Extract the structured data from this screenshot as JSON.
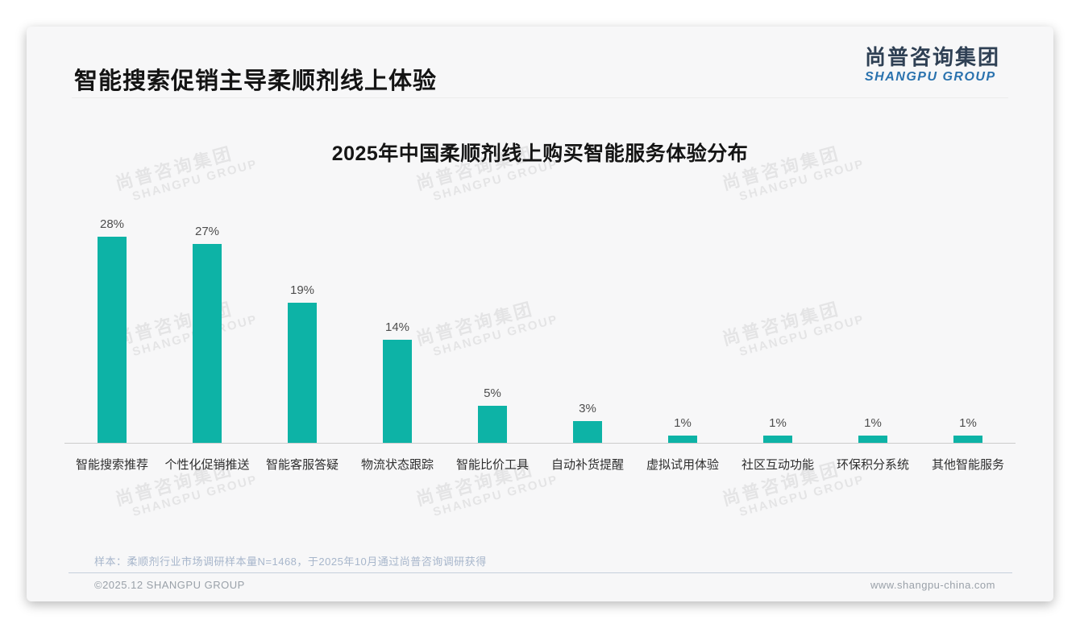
{
  "header": {
    "title": "智能搜索促销主导柔顺剂线上体验",
    "logo_cn": "尚普咨询集团",
    "logo_en": "SHANGPU GROUP"
  },
  "watermark": {
    "cn": "尚普咨询集团",
    "en": "SHANGPU GROUP"
  },
  "chart_data": {
    "type": "bar",
    "title": "2025年中国柔顺剂线上购买智能服务体验分布",
    "categories": [
      "智能搜索推荐",
      "个性化促销推送",
      "智能客服答疑",
      "物流状态跟踪",
      "智能比价工具",
      "自动补货提醒",
      "虚拟试用体验",
      "社区互动功能",
      "环保积分系统",
      "其他智能服务"
    ],
    "values": [
      28,
      27,
      19,
      14,
      5,
      3,
      1,
      1,
      1,
      1
    ],
    "value_labels": [
      "28%",
      "27%",
      "19%",
      "14%",
      "5%",
      "3%",
      "1%",
      "1%",
      "1%",
      "1%"
    ],
    "unit": "%",
    "xlabel": "",
    "ylabel": "",
    "ylim": [
      0,
      30
    ],
    "grid": false,
    "legend": false,
    "bar_color": "#0db3a6"
  },
  "footer": {
    "sample_note": "样本：柔顺剂行业市场调研样本量N=1468，于2025年10月通过尚普咨询调研获得",
    "copyright": "©2025.12 SHANGPU GROUP",
    "website": "www.shangpu-china.com"
  },
  "colors": {
    "bar": "#0db3a6",
    "logo_cn": "#2f4054",
    "logo_en": "#2a72ae",
    "card_bg": "#f7f7f8"
  }
}
